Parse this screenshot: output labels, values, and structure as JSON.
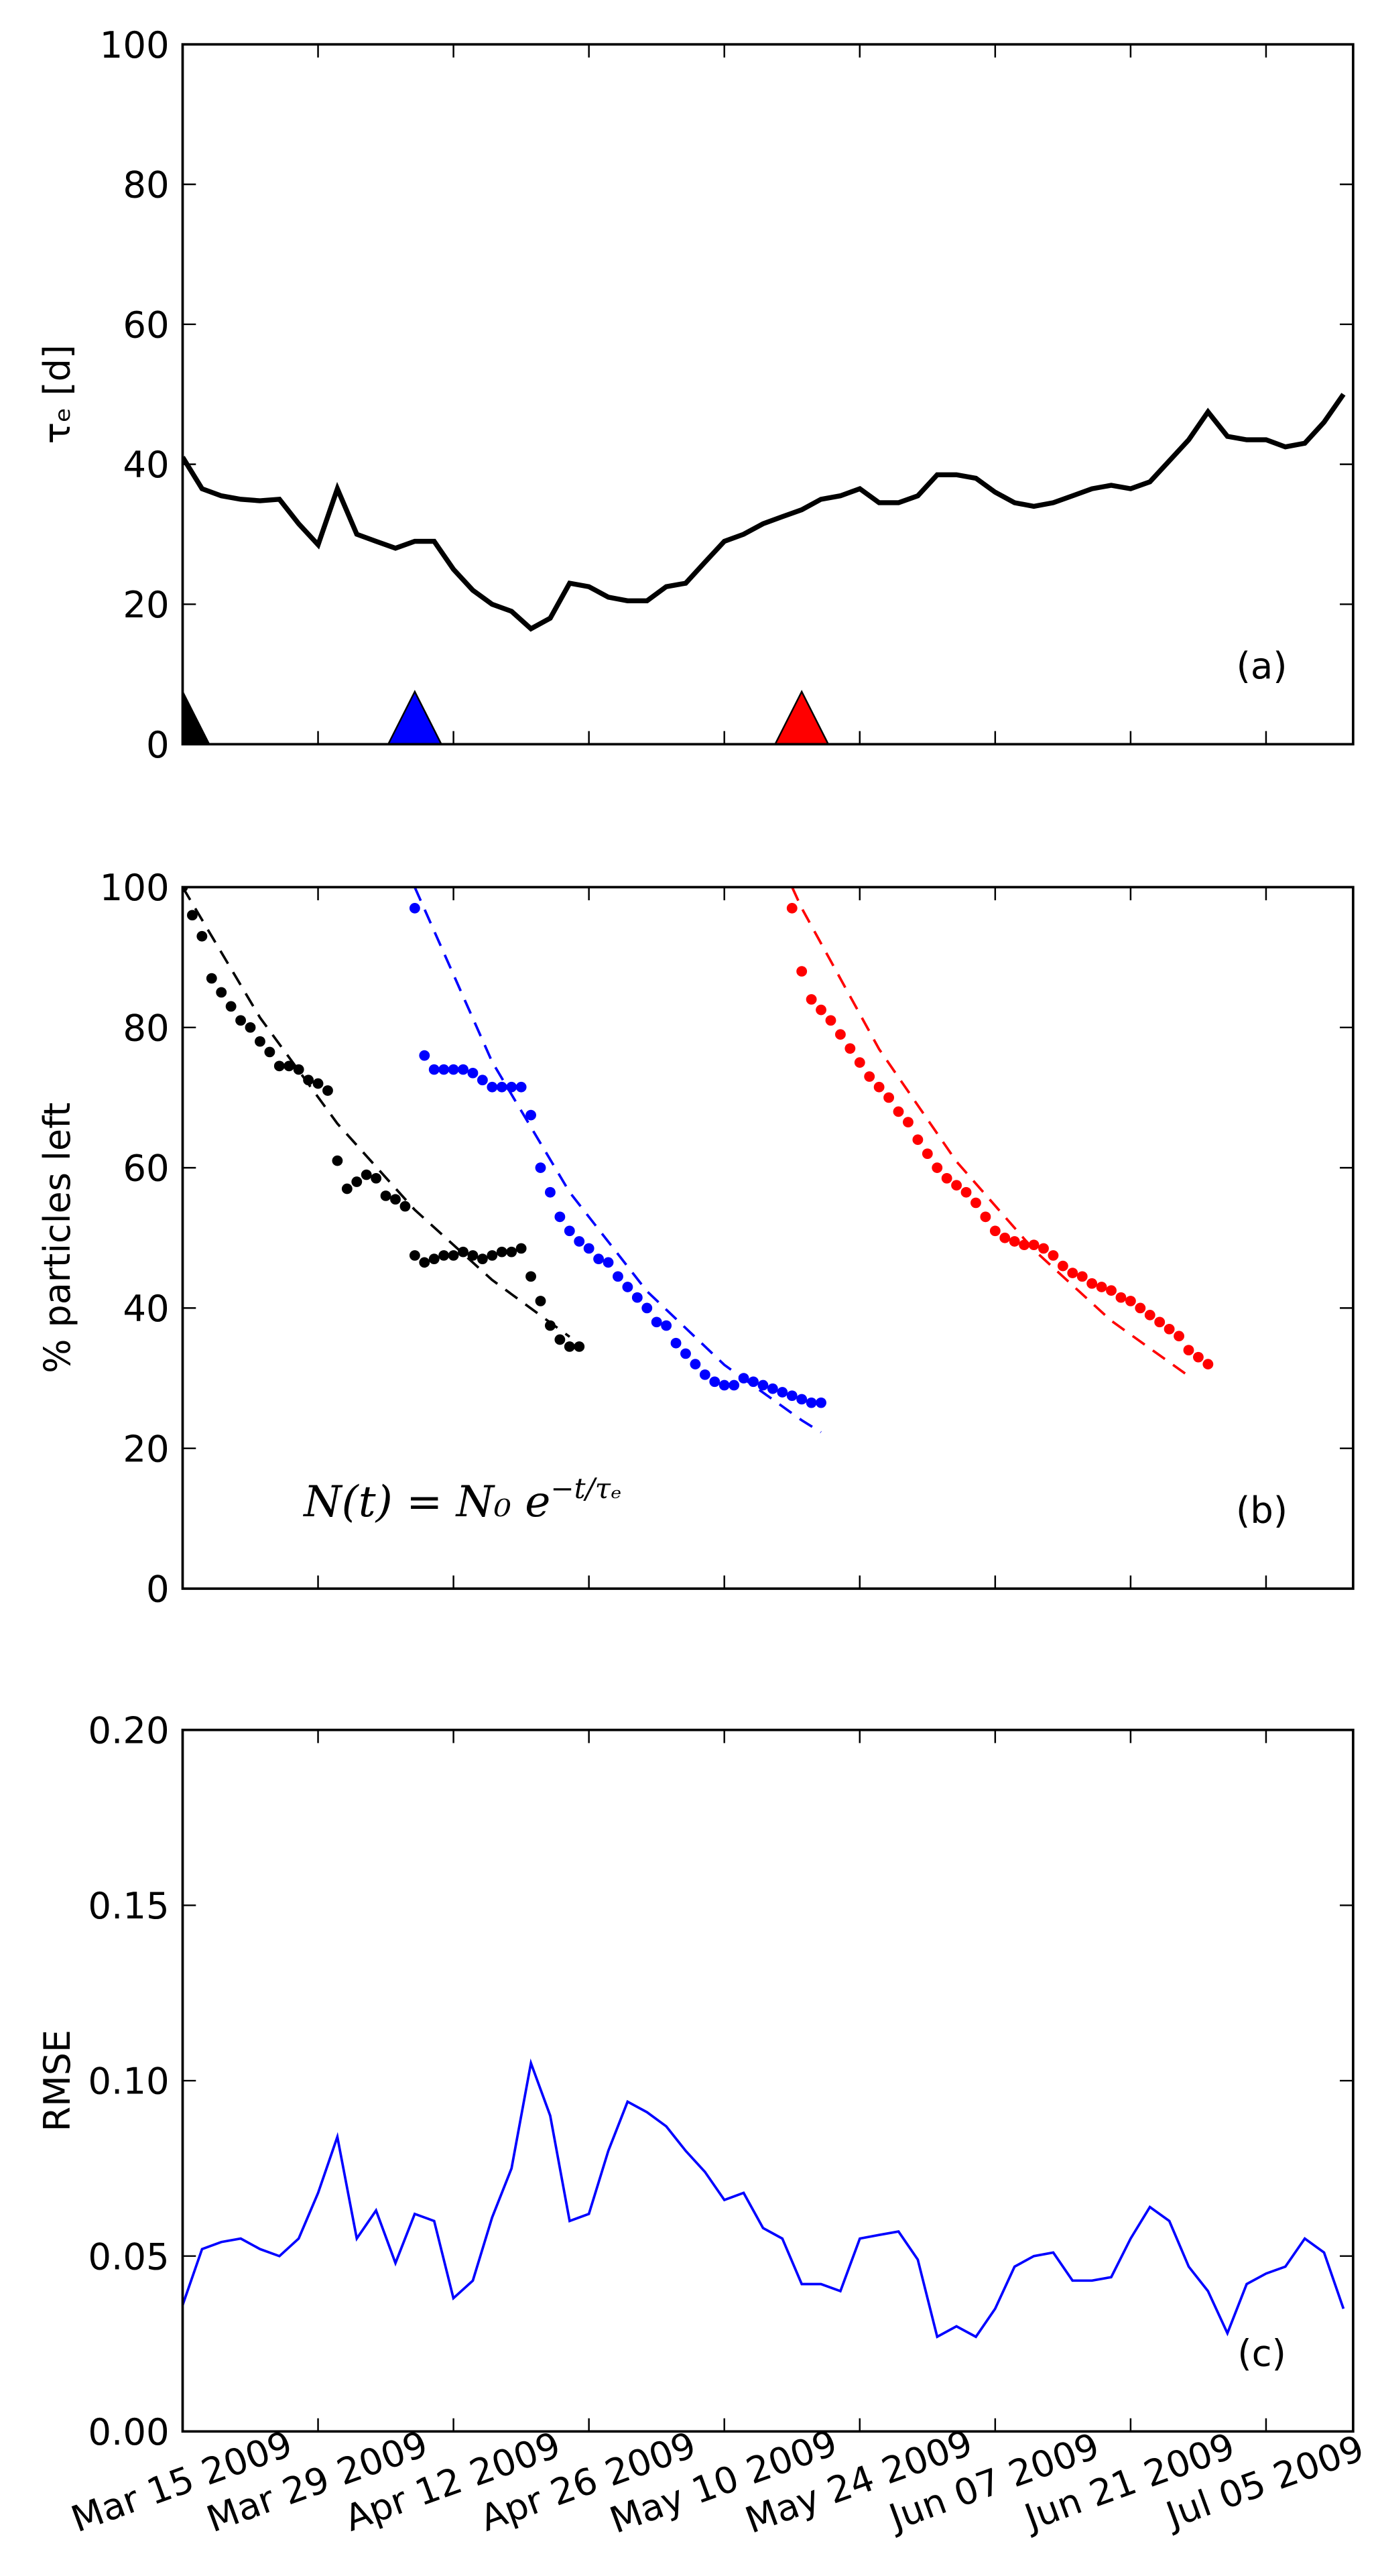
{
  "chart_data": [
    {
      "type": "line",
      "ylabel": "τₑ [d]",
      "annotation": "(a)",
      "xlim": [
        "2009-03-15",
        "2009-07-14"
      ],
      "xticks": [
        "2009-03-15",
        "2009-03-29",
        "2009-04-12",
        "2009-04-26",
        "2009-05-10",
        "2009-05-24",
        "2009-06-07",
        "2009-06-21",
        "2009-07-05"
      ],
      "ylim": [
        0,
        100
      ],
      "yticks": [
        0,
        20,
        40,
        60,
        80,
        100
      ],
      "series": [
        {
          "color": "#000000",
          "x": [
            "2009-03-15",
            "2009-03-17",
            "2009-03-19",
            "2009-03-21",
            "2009-03-23",
            "2009-03-25",
            "2009-03-27",
            "2009-03-29",
            "2009-03-31",
            "2009-04-02",
            "2009-04-04",
            "2009-04-06",
            "2009-04-08",
            "2009-04-10",
            "2009-04-12",
            "2009-04-14",
            "2009-04-16",
            "2009-04-18",
            "2009-04-20",
            "2009-04-22",
            "2009-04-24",
            "2009-04-26",
            "2009-04-28",
            "2009-04-30",
            "2009-05-02",
            "2009-05-04",
            "2009-05-06",
            "2009-05-08",
            "2009-05-10",
            "2009-05-12",
            "2009-05-14",
            "2009-05-16",
            "2009-05-18",
            "2009-05-20",
            "2009-05-22",
            "2009-05-24",
            "2009-05-26",
            "2009-05-28",
            "2009-05-30",
            "2009-06-01",
            "2009-06-03",
            "2009-06-05",
            "2009-06-07",
            "2009-06-09",
            "2009-06-11",
            "2009-06-13",
            "2009-06-15",
            "2009-06-17",
            "2009-06-19",
            "2009-06-21",
            "2009-06-23",
            "2009-06-25",
            "2009-06-27",
            "2009-06-29",
            "2009-07-01",
            "2009-07-03",
            "2009-07-05",
            "2009-07-07",
            "2009-07-09",
            "2009-07-11",
            "2009-07-13"
          ],
          "values": [
            41,
            36.5,
            35.5,
            35,
            34.8,
            35,
            31.5,
            28.5,
            36.5,
            30,
            29,
            28,
            29,
            29,
            25,
            22,
            20,
            19,
            16.5,
            18,
            23,
            22.5,
            21,
            20.5,
            20.5,
            22.5,
            23,
            26,
            29,
            30,
            31.5,
            32.5,
            33.5,
            35,
            35.5,
            36.5,
            34.5,
            34.5,
            35.5,
            38.5,
            38.5,
            38,
            36,
            34.5,
            34,
            34.5,
            35.5,
            36.5,
            37,
            36.5,
            37.5,
            40.5,
            43.5,
            47.5,
            44,
            43.5,
            43.5,
            42.5,
            43,
            46,
            50
          ]
        }
      ],
      "markers": {
        "x": [
          "2009-03-15",
          "2009-04-08",
          "2009-05-18"
        ],
        "values": [
          0,
          0,
          0
        ],
        "colors": [
          "#000000",
          "#0000ff",
          "#ff0000"
        ]
      }
    },
    {
      "type": "scatter",
      "ylabel": "% particles left",
      "annotation": "(b)",
      "formula": {
        "main": "N(t) = N₀ e",
        "exponent": "−t/τₑ"
      },
      "xlim": [
        "2009-03-15",
        "2009-07-14"
      ],
      "xticks": [
        "2009-03-15",
        "2009-03-29",
        "2009-04-12",
        "2009-04-26",
        "2009-05-10",
        "2009-05-24",
        "2009-06-07",
        "2009-06-21",
        "2009-07-05"
      ],
      "ylim": [
        0,
        100
      ],
      "yticks": [
        0,
        20,
        40,
        60,
        80,
        100
      ],
      "series": [
        {
          "color": "#000000",
          "x": [
            "2009-03-15",
            "2009-03-16",
            "2009-03-17",
            "2009-03-18",
            "2009-03-19",
            "2009-03-20",
            "2009-03-21",
            "2009-03-22",
            "2009-03-23",
            "2009-03-24",
            "2009-03-25",
            "2009-03-26",
            "2009-03-27",
            "2009-03-28",
            "2009-03-29",
            "2009-03-30",
            "2009-03-31",
            "2009-04-01",
            "2009-04-02",
            "2009-04-03",
            "2009-04-04",
            "2009-04-05",
            "2009-04-06",
            "2009-04-07",
            "2009-04-08",
            "2009-04-09",
            "2009-04-10",
            "2009-04-11",
            "2009-04-12",
            "2009-04-13",
            "2009-04-14",
            "2009-04-15",
            "2009-04-16",
            "2009-04-17",
            "2009-04-18",
            "2009-04-19",
            "2009-04-20",
            "2009-04-21",
            "2009-04-22",
            "2009-04-23",
            "2009-04-24",
            "2009-04-25"
          ],
          "values": [
            100,
            96,
            93,
            87,
            85,
            83,
            81,
            80,
            78,
            76.5,
            74.5,
            74.5,
            74,
            72.5,
            72,
            71,
            61,
            57,
            58,
            59,
            58.5,
            56,
            55.5,
            54.5,
            47.5,
            46.5,
            47,
            47.5,
            47.5,
            48,
            47.5,
            47,
            47.5,
            48,
            48,
            48.5,
            44.5,
            41,
            37.5,
            35.5,
            34.5,
            34.5
          ]
        },
        {
          "color": "#0000ff",
          "x": [
            "2009-04-08",
            "2009-04-09",
            "2009-04-10",
            "2009-04-11",
            "2009-04-12",
            "2009-04-13",
            "2009-04-14",
            "2009-04-15",
            "2009-04-16",
            "2009-04-17",
            "2009-04-18",
            "2009-04-19",
            "2009-04-20",
            "2009-04-21",
            "2009-04-22",
            "2009-04-23",
            "2009-04-24",
            "2009-04-25",
            "2009-04-26",
            "2009-04-27",
            "2009-04-28",
            "2009-04-29",
            "2009-04-30",
            "2009-05-01",
            "2009-05-02",
            "2009-05-03",
            "2009-05-04",
            "2009-05-05",
            "2009-05-06",
            "2009-05-07",
            "2009-05-08",
            "2009-05-09",
            "2009-05-10",
            "2009-05-11",
            "2009-05-12",
            "2009-05-13",
            "2009-05-14",
            "2009-05-15",
            "2009-05-16",
            "2009-05-17",
            "2009-05-18",
            "2009-05-19",
            "2009-05-20"
          ],
          "values": [
            97,
            76,
            74,
            74,
            74,
            74,
            73.5,
            72.5,
            71.5,
            71.5,
            71.5,
            71.5,
            67.5,
            60,
            56.5,
            53,
            51,
            49.5,
            48.5,
            47,
            46.5,
            44.5,
            43,
            41.5,
            40,
            38,
            37.5,
            35,
            33.5,
            32,
            30.5,
            29.5,
            29,
            29,
            30,
            29.5,
            29,
            28.5,
            28,
            27.5,
            27,
            26.5,
            26.5
          ]
        },
        {
          "color": "#ff0000",
          "x": [
            "2009-05-17",
            "2009-05-18",
            "2009-05-19",
            "2009-05-20",
            "2009-05-21",
            "2009-05-22",
            "2009-05-23",
            "2009-05-24",
            "2009-05-25",
            "2009-05-26",
            "2009-05-27",
            "2009-05-28",
            "2009-05-29",
            "2009-05-30",
            "2009-05-31",
            "2009-06-01",
            "2009-06-02",
            "2009-06-03",
            "2009-06-04",
            "2009-06-05",
            "2009-06-06",
            "2009-06-07",
            "2009-06-08",
            "2009-06-09",
            "2009-06-10",
            "2009-06-11",
            "2009-06-12",
            "2009-06-13",
            "2009-06-14",
            "2009-06-15",
            "2009-06-16",
            "2009-06-17",
            "2009-06-18",
            "2009-06-19",
            "2009-06-20",
            "2009-06-21",
            "2009-06-22",
            "2009-06-23",
            "2009-06-24",
            "2009-06-25",
            "2009-06-26",
            "2009-06-27",
            "2009-06-28",
            "2009-06-29"
          ],
          "values": [
            97,
            88,
            84,
            82.5,
            81,
            79,
            77,
            75,
            73,
            71.5,
            70,
            68,
            66.5,
            64,
            62,
            60,
            58.5,
            57.5,
            56.5,
            55,
            53,
            51,
            50,
            49.5,
            49,
            49,
            48.5,
            47.5,
            46,
            45,
            44.5,
            43.5,
            43,
            42.5,
            41.5,
            41,
            40,
            39,
            38,
            37,
            36,
            34,
            33,
            32
          ]
        }
      ],
      "fits": [
        {
          "color": "#000000",
          "x": [
            "2009-03-15",
            "2009-03-23",
            "2009-03-31",
            "2009-04-08",
            "2009-04-16",
            "2009-04-24"
          ],
          "values": [
            100,
            81.4,
            66.3,
            54.0,
            44.0,
            35.9
          ]
        },
        {
          "color": "#0000ff",
          "x": [
            "2009-04-08",
            "2009-04-16",
            "2009-04-24",
            "2009-05-02",
            "2009-05-10",
            "2009-05-18",
            "2009-05-20"
          ],
          "values": [
            100,
            75.1,
            56.5,
            42.4,
            31.9,
            24.0,
            22.3
          ]
        },
        {
          "color": "#ff0000",
          "x": [
            "2009-05-17",
            "2009-05-18",
            "2009-05-26",
            "2009-06-03",
            "2009-06-11",
            "2009-06-19",
            "2009-06-27"
          ],
          "values": [
            100,
            97.0,
            76.9,
            60.9,
            48.3,
            38.2,
            30.3
          ]
        }
      ]
    },
    {
      "type": "line",
      "ylabel": "RMSE",
      "annotation": "(c)",
      "xlim": [
        "2009-03-15",
        "2009-07-14"
      ],
      "xticks": [
        {
          "value": "2009-03-15",
          "label": "Mar 15 2009"
        },
        {
          "value": "2009-03-29",
          "label": "Mar 29 2009"
        },
        {
          "value": "2009-04-12",
          "label": "Apr 12 2009"
        },
        {
          "value": "2009-04-26",
          "label": "Apr 26 2009"
        },
        {
          "value": "2009-05-10",
          "label": "May 10 2009"
        },
        {
          "value": "2009-05-24",
          "label": "May 24 2009"
        },
        {
          "value": "2009-06-07",
          "label": "Jun 07 2009"
        },
        {
          "value": "2009-06-21",
          "label": "Jun 21 2009"
        },
        {
          "value": "2009-07-05",
          "label": "Jul 05 2009"
        }
      ],
      "ylim": [
        0,
        0.2
      ],
      "yticks": [
        {
          "value": 0,
          "label": "0.00"
        },
        {
          "value": 0.05,
          "label": "0.05"
        },
        {
          "value": 0.1,
          "label": "0.10"
        },
        {
          "value": 0.15,
          "label": "0.15"
        },
        {
          "value": 0.2,
          "label": "0.20"
        }
      ],
      "series": [
        {
          "color": "#0000ff",
          "x": [
            "2009-03-15",
            "2009-03-17",
            "2009-03-19",
            "2009-03-21",
            "2009-03-23",
            "2009-03-25",
            "2009-03-27",
            "2009-03-29",
            "2009-03-31",
            "2009-04-02",
            "2009-04-04",
            "2009-04-06",
            "2009-04-08",
            "2009-04-10",
            "2009-04-12",
            "2009-04-14",
            "2009-04-16",
            "2009-04-18",
            "2009-04-20",
            "2009-04-22",
            "2009-04-24",
            "2009-04-26",
            "2009-04-28",
            "2009-04-30",
            "2009-05-02",
            "2009-05-04",
            "2009-05-06",
            "2009-05-08",
            "2009-05-10",
            "2009-05-12",
            "2009-05-14",
            "2009-05-16",
            "2009-05-18",
            "2009-05-20",
            "2009-05-22",
            "2009-05-24",
            "2009-05-26",
            "2009-05-28",
            "2009-05-30",
            "2009-06-01",
            "2009-06-03",
            "2009-06-05",
            "2009-06-07",
            "2009-06-09",
            "2009-06-11",
            "2009-06-13",
            "2009-06-15",
            "2009-06-17",
            "2009-06-19",
            "2009-06-21",
            "2009-06-23",
            "2009-06-25",
            "2009-06-27",
            "2009-06-29",
            "2009-07-01",
            "2009-07-03",
            "2009-07-05",
            "2009-07-07",
            "2009-07-09",
            "2009-07-11",
            "2009-07-13"
          ],
          "values": [
            0.036,
            0.052,
            0.054,
            0.055,
            0.052,
            0.05,
            0.055,
            0.068,
            0.084,
            0.055,
            0.063,
            0.048,
            0.062,
            0.06,
            0.038,
            0.043,
            0.061,
            0.075,
            0.105,
            0.09,
            0.06,
            0.062,
            0.08,
            0.094,
            0.091,
            0.087,
            0.08,
            0.074,
            0.066,
            0.068,
            0.058,
            0.055,
            0.042,
            0.042,
            0.04,
            0.055,
            0.056,
            0.057,
            0.049,
            0.027,
            0.03,
            0.027,
            0.035,
            0.047,
            0.05,
            0.051,
            0.043,
            0.043,
            0.044,
            0.055,
            0.064,
            0.06,
            0.047,
            0.04,
            0.028,
            0.042,
            0.045,
            0.047,
            0.055,
            0.051,
            0.035
          ]
        }
      ]
    }
  ]
}
